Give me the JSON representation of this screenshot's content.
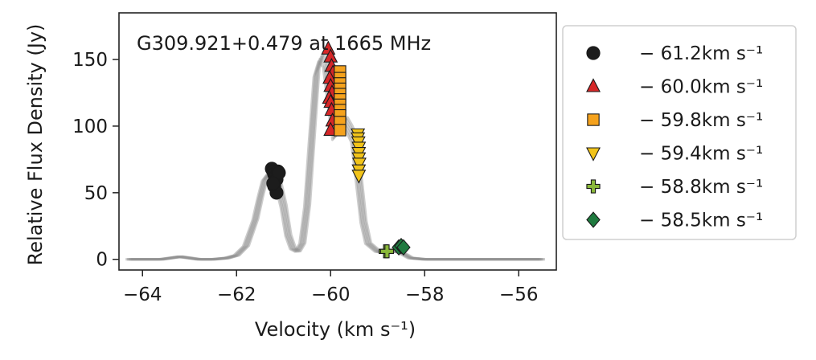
{
  "chart_data": {
    "type": "scatter",
    "annotation": "G309.921+0.479 at 1665 MHz",
    "xlabel": "Velocity (km s⁻¹)",
    "ylabel": "Relative Flux Density (Jy)",
    "xlim": [
      -64.5,
      -55.2
    ],
    "ylim": [
      -8,
      185
    ],
    "xticks": [
      -64,
      -62,
      -60,
      -58,
      -56
    ],
    "xtick_labels": [
      "−64",
      "−62",
      "−60",
      "−58",
      "−56"
    ],
    "yticks": [
      0,
      50,
      100,
      150
    ],
    "ytick_labels": [
      "0",
      "50",
      "100",
      "150"
    ],
    "grid": false,
    "legend_position": "right, outside",
    "spectrum": {
      "color": "#8f8f8f",
      "x": [
        -64.3,
        -63.6,
        -63.4,
        -63.2,
        -63.0,
        -62.8,
        -62.5,
        -62.2,
        -62.0,
        -61.8,
        -61.6,
        -61.5,
        -61.4,
        -61.3,
        -61.2,
        -61.1,
        -61.0,
        -60.9,
        -60.8,
        -60.7,
        -60.6,
        -60.5,
        -60.4,
        -60.3,
        -60.2,
        -60.1,
        -60.0,
        -59.9,
        -59.8,
        -59.7,
        -59.6,
        -59.5,
        -59.4,
        -59.3,
        -59.2,
        -59.0,
        -58.8,
        -58.6,
        -58.5,
        -58.3,
        -58.0,
        -57.0,
        -56.0,
        -55.5
      ],
      "y": [
        0,
        0,
        1,
        2,
        1,
        0,
        0,
        1,
        3,
        10,
        30,
        46,
        60,
        65,
        60,
        55,
        40,
        18,
        8,
        6,
        12,
        40,
        90,
        140,
        152,
        148,
        120,
        92,
        100,
        104,
        98,
        90,
        60,
        28,
        12,
        6,
        5,
        6,
        5,
        1,
        0,
        0,
        0,
        0
      ]
    },
    "series": [
      {
        "name": "− 61.2km s⁻¹",
        "marker": "circle",
        "color": "#1c1c1c",
        "x": [
          -61.25,
          -61.22,
          -61.2,
          -61.18,
          -61.15,
          -61.12,
          -61.1,
          -61.2,
          -61.15,
          -61.22
        ],
        "y": [
          68,
          66,
          64,
          62,
          60,
          66,
          65,
          55,
          50,
          57
        ]
      },
      {
        "name": "− 60.0km s⁻¹",
        "marker": "triangle-up",
        "color": "#d62728",
        "x": [
          -60.05,
          -60.0,
          -59.98,
          -59.95,
          -60.02,
          -60.0,
          -59.97,
          -60.03,
          -60.0,
          -59.98,
          -59.96,
          -60.0
        ],
        "y": [
          158,
          152,
          145,
          140,
          136,
          130,
          125,
          121,
          118,
          112,
          104,
          97
        ]
      },
      {
        "name": "− 59.8km s⁻¹",
        "marker": "square",
        "color": "#f5a21d",
        "x": [
          -59.8,
          -59.8,
          -59.8,
          -59.8,
          -59.8,
          -59.8,
          -59.8,
          -59.8,
          -59.8,
          -59.8,
          -59.8
        ],
        "y": [
          141,
          136,
          132,
          128,
          124,
          120,
          116,
          112,
          108,
          103,
          97
        ]
      },
      {
        "name": "− 59.4km s⁻¹",
        "marker": "triangle-down",
        "color": "#f2c41a",
        "x": [
          -59.42,
          -59.42,
          -59.41,
          -59.4,
          -59.4,
          -59.4,
          -59.39,
          -59.4,
          -59.4
        ],
        "y": [
          94,
          91,
          88,
          84,
          80,
          76,
          72,
          67,
          63
        ]
      },
      {
        "name": "− 58.8km s⁻¹",
        "marker": "plus",
        "color": "#8ab83a",
        "x": [
          -58.83,
          -58.8
        ],
        "y": [
          6,
          6
        ]
      },
      {
        "name": "− 58.5km s⁻¹",
        "marker": "diamond",
        "color": "#1f7a3f",
        "x": [
          -58.55,
          -58.5,
          -58.45
        ],
        "y": [
          9,
          10,
          9
        ]
      }
    ]
  }
}
